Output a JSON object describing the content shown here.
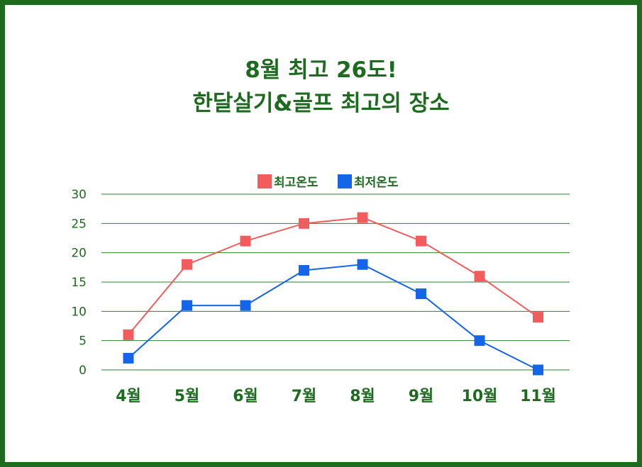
{
  "page": {
    "title_line1": "8월 최고 26도!",
    "title_line2": "한달살기&골프 최고의 장소"
  },
  "colors": {
    "frame": "#1d6b1f",
    "text": "#1d6b1f",
    "gridline": "#2e7d32",
    "series_high": "#f25c5c",
    "series_low": "#1565e8"
  },
  "chart_data": {
    "type": "line",
    "categories": [
      "4월",
      "5월",
      "6월",
      "7월",
      "8월",
      "9월",
      "10월",
      "11월"
    ],
    "series": [
      {
        "name": "최고온도",
        "color": "#f25c5c",
        "values": [
          6,
          18,
          22,
          25,
          26,
          22,
          16,
          9
        ]
      },
      {
        "name": "최저온도",
        "color": "#1565e8",
        "values": [
          2,
          11,
          11,
          17,
          18,
          13,
          5,
          0
        ]
      }
    ],
    "yticks": [
      "0",
      "5",
      "10",
      "15",
      "20",
      "25",
      "30"
    ],
    "ylim": [
      0,
      30
    ],
    "grid": true,
    "legend_position": "top-center",
    "marker": "square"
  }
}
